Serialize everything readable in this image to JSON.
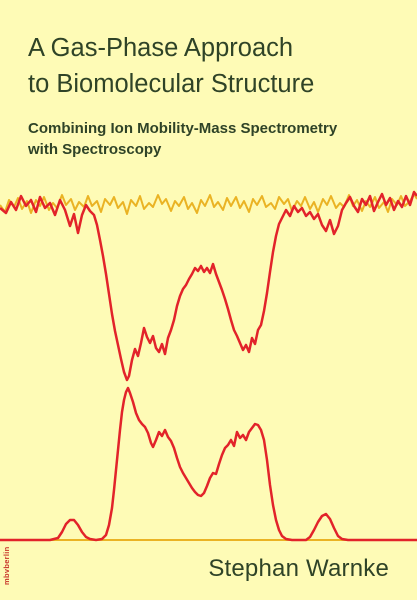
{
  "cover": {
    "title_lines": [
      "A Gas-Phase Approach",
      "to Biomolecular Structure"
    ],
    "subtitle_lines": [
      "Combining Ion Mobility-Mass Spectrometry",
      "with Spectroscopy"
    ],
    "author": "Stephan Warnke",
    "publisher": "mbvberlin"
  },
  "colors": {
    "background": "#fefbb6",
    "text": "#2f4327",
    "trace_red": "#e2232a",
    "trace_orange": "#eab324"
  }
}
